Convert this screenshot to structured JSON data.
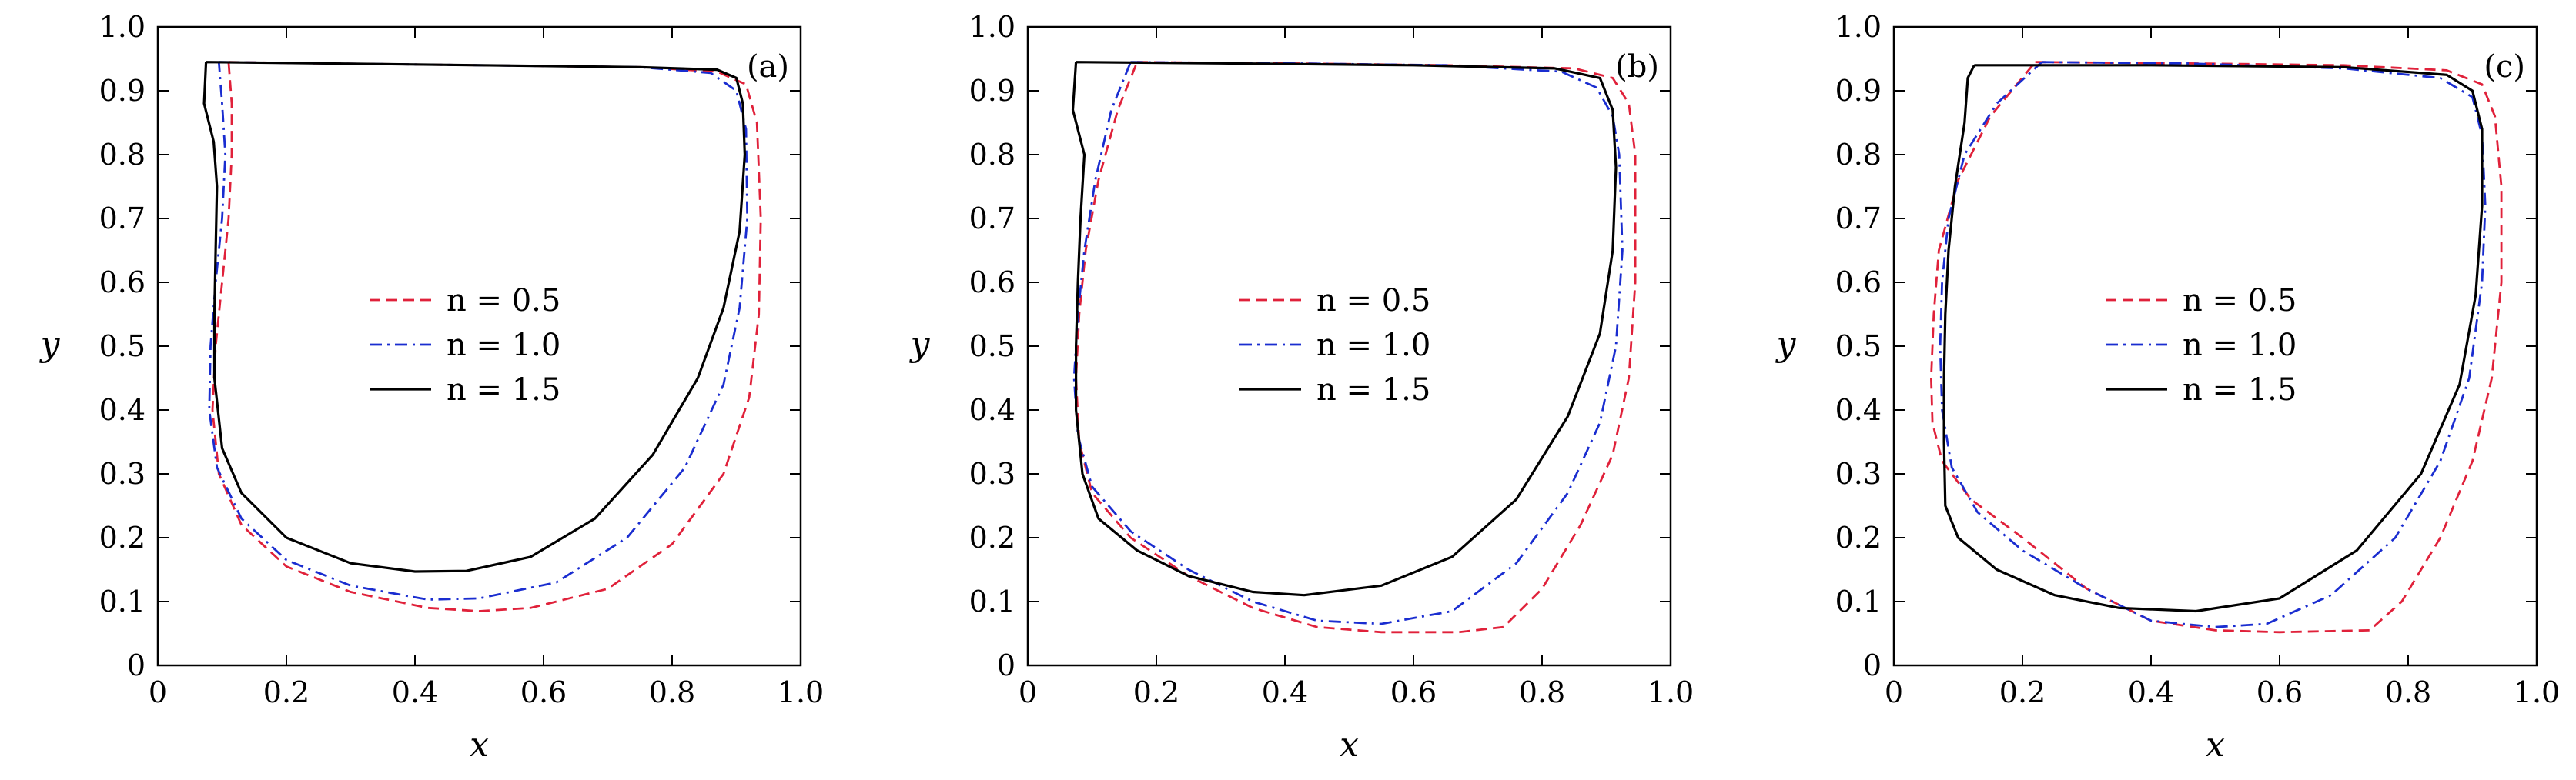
{
  "chart_data": [
    {
      "type": "line",
      "panel_label": "(a)",
      "xlabel": "x",
      "ylabel": "y",
      "xlim": [
        0,
        1.0
      ],
      "ylim": [
        0,
        1.0
      ],
      "xticks": [
        "0",
        "0.2",
        "0.4",
        "0.6",
        "0.8",
        "1.0"
      ],
      "yticks": [
        "0",
        "0.1",
        "0.2",
        "0.3",
        "0.4",
        "0.5",
        "0.6",
        "0.7",
        "0.8",
        "0.9",
        "1.0"
      ],
      "grid": false,
      "legend": "center",
      "series": [
        {
          "name": "n = 0.5",
          "color": "#e0213a",
          "dash": "dashed",
          "points": [
            [
              0.11,
              0.945
            ],
            [
              0.25,
              0.943
            ],
            [
              0.5,
              0.94
            ],
            [
              0.75,
              0.937
            ],
            [
              0.87,
              0.93
            ],
            [
              0.915,
              0.91
            ],
            [
              0.932,
              0.85
            ],
            [
              0.938,
              0.7
            ],
            [
              0.935,
              0.55
            ],
            [
              0.92,
              0.42
            ],
            [
              0.88,
              0.3
            ],
            [
              0.8,
              0.19
            ],
            [
              0.7,
              0.12
            ],
            [
              0.58,
              0.09
            ],
            [
              0.5,
              0.085
            ],
            [
              0.42,
              0.09
            ],
            [
              0.3,
              0.115
            ],
            [
              0.2,
              0.155
            ],
            [
              0.13,
              0.22
            ],
            [
              0.095,
              0.3
            ],
            [
              0.085,
              0.4
            ],
            [
              0.09,
              0.5
            ],
            [
              0.1,
              0.6
            ],
            [
              0.11,
              0.7
            ],
            [
              0.115,
              0.8
            ],
            [
              0.115,
              0.88
            ],
            [
              0.11,
              0.945
            ]
          ]
        },
        {
          "name": "n = 1.0",
          "color": "#1a2dd0",
          "dash": "dashdot",
          "points": [
            [
              0.095,
              0.945
            ],
            [
              0.25,
              0.943
            ],
            [
              0.5,
              0.94
            ],
            [
              0.75,
              0.937
            ],
            [
              0.86,
              0.928
            ],
            [
              0.9,
              0.9
            ],
            [
              0.915,
              0.84
            ],
            [
              0.917,
              0.7
            ],
            [
              0.905,
              0.56
            ],
            [
              0.88,
              0.44
            ],
            [
              0.82,
              0.31
            ],
            [
              0.73,
              0.2
            ],
            [
              0.62,
              0.13
            ],
            [
              0.5,
              0.105
            ],
            [
              0.42,
              0.103
            ],
            [
              0.3,
              0.125
            ],
            [
              0.2,
              0.165
            ],
            [
              0.13,
              0.23
            ],
            [
              0.092,
              0.31
            ],
            [
              0.08,
              0.4
            ],
            [
              0.082,
              0.5
            ],
            [
              0.09,
              0.6
            ],
            [
              0.1,
              0.7
            ],
            [
              0.105,
              0.8
            ],
            [
              0.1,
              0.88
            ],
            [
              0.095,
              0.945
            ]
          ]
        },
        {
          "name": "n = 1.5",
          "color": "#000000",
          "dash": "solid",
          "points": [
            [
              0.075,
              0.945
            ],
            [
              0.25,
              0.943
            ],
            [
              0.5,
              0.94
            ],
            [
              0.75,
              0.937
            ],
            [
              0.87,
              0.933
            ],
            [
              0.9,
              0.92
            ],
            [
              0.91,
              0.88
            ],
            [
              0.913,
              0.8
            ],
            [
              0.905,
              0.68
            ],
            [
              0.88,
              0.56
            ],
            [
              0.84,
              0.45
            ],
            [
              0.77,
              0.33
            ],
            [
              0.68,
              0.23
            ],
            [
              0.58,
              0.17
            ],
            [
              0.48,
              0.148
            ],
            [
              0.4,
              0.147
            ],
            [
              0.3,
              0.16
            ],
            [
              0.2,
              0.2
            ],
            [
              0.13,
              0.27
            ],
            [
              0.1,
              0.34
            ],
            [
              0.088,
              0.45
            ],
            [
              0.088,
              0.55
            ],
            [
              0.09,
              0.65
            ],
            [
              0.092,
              0.75
            ],
            [
              0.087,
              0.82
            ],
            [
              0.072,
              0.88
            ],
            [
              0.075,
              0.945
            ]
          ]
        }
      ]
    },
    {
      "type": "line",
      "panel_label": "(b)",
      "xlabel": "x",
      "ylabel": "y",
      "xlim": [
        0,
        1.0
      ],
      "ylim": [
        0,
        1.0
      ],
      "xticks": [
        "0",
        "0.2",
        "0.4",
        "0.6",
        "0.8",
        "1.0"
      ],
      "yticks": [
        "0",
        "0.1",
        "0.2",
        "0.3",
        "0.4",
        "0.5",
        "0.6",
        "0.7",
        "0.8",
        "0.9",
        "1.0"
      ],
      "grid": false,
      "legend": "center",
      "series": [
        {
          "name": "n = 0.5",
          "color": "#e0213a",
          "dash": "dashed",
          "points": [
            [
              0.17,
              0.945
            ],
            [
              0.4,
              0.943
            ],
            [
              0.65,
              0.94
            ],
            [
              0.85,
              0.935
            ],
            [
              0.91,
              0.92
            ],
            [
              0.935,
              0.88
            ],
            [
              0.945,
              0.8
            ],
            [
              0.945,
              0.6
            ],
            [
              0.935,
              0.45
            ],
            [
              0.91,
              0.33
            ],
            [
              0.86,
              0.22
            ],
            [
              0.8,
              0.12
            ],
            [
              0.74,
              0.06
            ],
            [
              0.67,
              0.052
            ],
            [
              0.55,
              0.052
            ],
            [
              0.45,
              0.06
            ],
            [
              0.35,
              0.09
            ],
            [
              0.25,
              0.14
            ],
            [
              0.16,
              0.2
            ],
            [
              0.1,
              0.27
            ],
            [
              0.08,
              0.35
            ],
            [
              0.075,
              0.45
            ],
            [
              0.08,
              0.55
            ],
            [
              0.09,
              0.65
            ],
            [
              0.11,
              0.76
            ],
            [
              0.14,
              0.87
            ],
            [
              0.17,
              0.945
            ]
          ]
        },
        {
          "name": "n = 1.0",
          "color": "#1a2dd0",
          "dash": "dashdot",
          "points": [
            [
              0.16,
              0.945
            ],
            [
              0.4,
              0.943
            ],
            [
              0.65,
              0.94
            ],
            [
              0.83,
              0.93
            ],
            [
              0.885,
              0.905
            ],
            [
              0.91,
              0.86
            ],
            [
              0.92,
              0.8
            ],
            [
              0.925,
              0.65
            ],
            [
              0.915,
              0.5
            ],
            [
              0.89,
              0.38
            ],
            [
              0.84,
              0.27
            ],
            [
              0.76,
              0.16
            ],
            [
              0.66,
              0.085
            ],
            [
              0.55,
              0.065
            ],
            [
              0.45,
              0.07
            ],
            [
              0.35,
              0.1
            ],
            [
              0.25,
              0.15
            ],
            [
              0.16,
              0.21
            ],
            [
              0.1,
              0.28
            ],
            [
              0.078,
              0.36
            ],
            [
              0.072,
              0.45
            ],
            [
              0.078,
              0.55
            ],
            [
              0.088,
              0.65
            ],
            [
              0.105,
              0.76
            ],
            [
              0.13,
              0.87
            ],
            [
              0.16,
              0.945
            ]
          ]
        },
        {
          "name": "n = 1.5",
          "color": "#000000",
          "dash": "solid",
          "points": [
            [
              0.075,
              0.945
            ],
            [
              0.3,
              0.943
            ],
            [
              0.6,
              0.94
            ],
            [
              0.82,
              0.935
            ],
            [
              0.89,
              0.92
            ],
            [
              0.91,
              0.87
            ],
            [
              0.915,
              0.78
            ],
            [
              0.91,
              0.65
            ],
            [
              0.89,
              0.52
            ],
            [
              0.84,
              0.39
            ],
            [
              0.76,
              0.26
            ],
            [
              0.66,
              0.17
            ],
            [
              0.55,
              0.125
            ],
            [
              0.43,
              0.11
            ],
            [
              0.35,
              0.115
            ],
            [
              0.25,
              0.14
            ],
            [
              0.17,
              0.18
            ],
            [
              0.11,
              0.23
            ],
            [
              0.085,
              0.3
            ],
            [
              0.075,
              0.4
            ],
            [
              0.075,
              0.5
            ],
            [
              0.078,
              0.6
            ],
            [
              0.082,
              0.7
            ],
            [
              0.088,
              0.8
            ],
            [
              0.07,
              0.87
            ],
            [
              0.075,
              0.945
            ]
          ]
        }
      ]
    },
    {
      "type": "line",
      "panel_label": "(c)",
      "xlabel": "x",
      "ylabel": "y",
      "xlim": [
        0,
        1.0
      ],
      "ylim": [
        0,
        1.0
      ],
      "xticks": [
        "0",
        "0.2",
        "0.4",
        "0.6",
        "0.8",
        "1.0"
      ],
      "yticks": [
        "0",
        "0.1",
        "0.2",
        "0.3",
        "0.4",
        "0.5",
        "0.6",
        "0.7",
        "0.8",
        "0.9",
        "1.0"
      ],
      "grid": false,
      "legend": "center",
      "series": [
        {
          "name": "n = 0.5",
          "color": "#e0213a",
          "dash": "dashed",
          "points": [
            [
              0.22,
              0.945
            ],
            [
              0.45,
              0.943
            ],
            [
              0.7,
              0.94
            ],
            [
              0.86,
              0.932
            ],
            [
              0.915,
              0.91
            ],
            [
              0.935,
              0.86
            ],
            [
              0.945,
              0.75
            ],
            [
              0.945,
              0.6
            ],
            [
              0.93,
              0.45
            ],
            [
              0.9,
              0.32
            ],
            [
              0.85,
              0.2
            ],
            [
              0.79,
              0.1
            ],
            [
              0.74,
              0.055
            ],
            [
              0.6,
              0.052
            ],
            [
              0.5,
              0.055
            ],
            [
              0.4,
              0.07
            ],
            [
              0.3,
              0.12
            ],
            [
              0.2,
              0.2
            ],
            [
              0.12,
              0.26
            ],
            [
              0.075,
              0.32
            ],
            [
              0.06,
              0.38
            ],
            [
              0.058,
              0.45
            ],
            [
              0.062,
              0.55
            ],
            [
              0.07,
              0.65
            ],
            [
              0.1,
              0.76
            ],
            [
              0.15,
              0.86
            ],
            [
              0.22,
              0.945
            ]
          ]
        },
        {
          "name": "n = 1.0",
          "color": "#1a2dd0",
          "dash": "dashdot",
          "points": [
            [
              0.23,
              0.945
            ],
            [
              0.45,
              0.943
            ],
            [
              0.7,
              0.935
            ],
            [
              0.85,
              0.92
            ],
            [
              0.9,
              0.89
            ],
            [
              0.915,
              0.83
            ],
            [
              0.92,
              0.72
            ],
            [
              0.915,
              0.6
            ],
            [
              0.895,
              0.45
            ],
            [
              0.85,
              0.32
            ],
            [
              0.78,
              0.2
            ],
            [
              0.68,
              0.11
            ],
            [
              0.58,
              0.065
            ],
            [
              0.5,
              0.06
            ],
            [
              0.4,
              0.07
            ],
            [
              0.3,
              0.12
            ],
            [
              0.2,
              0.18
            ],
            [
              0.13,
              0.24
            ],
            [
              0.09,
              0.31
            ],
            [
              0.075,
              0.4
            ],
            [
              0.072,
              0.5
            ],
            [
              0.075,
              0.6
            ],
            [
              0.085,
              0.7
            ],
            [
              0.11,
              0.8
            ],
            [
              0.16,
              0.88
            ],
            [
              0.23,
              0.945
            ]
          ]
        },
        {
          "name": "n = 1.5",
          "color": "#000000",
          "dash": "solid",
          "points": [
            [
              0.125,
              0.94
            ],
            [
              0.4,
              0.94
            ],
            [
              0.7,
              0.937
            ],
            [
              0.86,
              0.925
            ],
            [
              0.9,
              0.9
            ],
            [
              0.915,
              0.84
            ],
            [
              0.915,
              0.72
            ],
            [
              0.905,
              0.58
            ],
            [
              0.88,
              0.44
            ],
            [
              0.82,
              0.3
            ],
            [
              0.72,
              0.18
            ],
            [
              0.6,
              0.105
            ],
            [
              0.47,
              0.085
            ],
            [
              0.35,
              0.09
            ],
            [
              0.25,
              0.11
            ],
            [
              0.16,
              0.15
            ],
            [
              0.1,
              0.2
            ],
            [
              0.08,
              0.25
            ],
            [
              0.078,
              0.35
            ],
            [
              0.078,
              0.45
            ],
            [
              0.08,
              0.55
            ],
            [
              0.085,
              0.65
            ],
            [
              0.095,
              0.75
            ],
            [
              0.11,
              0.85
            ],
            [
              0.115,
              0.92
            ],
            [
              0.125,
              0.94
            ]
          ]
        }
      ]
    }
  ]
}
